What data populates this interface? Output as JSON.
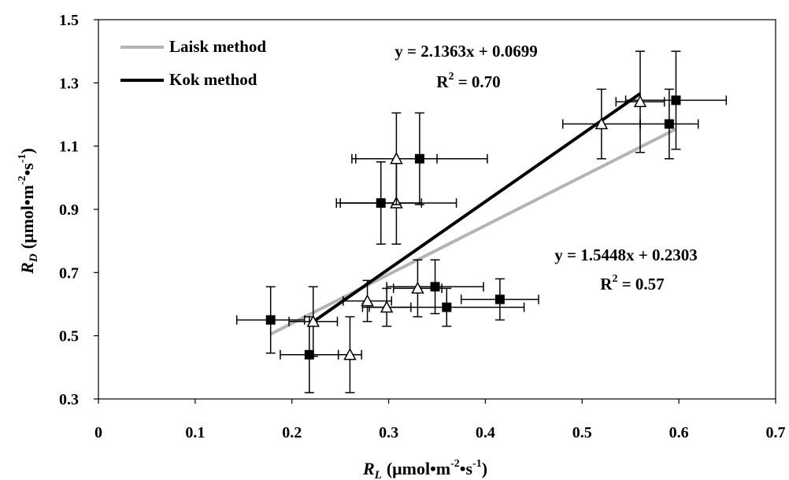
{
  "chart_data": {
    "type": "scatter",
    "x_axis": {
      "label_main": "R",
      "label_sub": "L",
      "label_pre_unit": "(μmol•m",
      "label_exp1": "-2",
      "label_mid": "•s",
      "label_exp2": "-1",
      "label_post": ")",
      "lim": [
        0,
        0.7
      ],
      "ticks": [
        0,
        0.1,
        0.2,
        0.3,
        0.4,
        0.5,
        0.6,
        0.7
      ],
      "tick_labels": [
        "0",
        "0.1",
        "0.2",
        "0.3",
        "0.4",
        "0.5",
        "0.6",
        "0.7"
      ]
    },
    "y_axis": {
      "label_main": "R",
      "label_sub": "D",
      "label_pre_unit": "(μmol•m",
      "label_exp1": "-2",
      "label_mid": "•s",
      "label_exp2": "-1",
      "label_post": ")",
      "lim": [
        0.3,
        1.5
      ],
      "ticks": [
        0.3,
        0.5,
        0.7,
        0.9,
        1.1,
        1.3,
        1.5
      ],
      "tick_labels": [
        "0.3",
        "0.5",
        "0.7",
        "0.9",
        "1.1",
        "1.3",
        "1.5"
      ]
    },
    "grid": false,
    "legend": {
      "placement": "top-left",
      "entries": [
        {
          "label": "Laisk method",
          "color": "#b4b4b4"
        },
        {
          "label": "Kok method",
          "color": "#000000"
        }
      ]
    },
    "series": [
      {
        "marker": "square-filled",
        "points": [
          {
            "x": 0.178,
            "y": 0.55,
            "xerr": 0.035,
            "yerr": 0.105
          },
          {
            "x": 0.218,
            "y": 0.44,
            "xerr": 0.03,
            "yerr": 0.12
          },
          {
            "x": 0.292,
            "y": 0.92,
            "xerr": 0.042,
            "yerr": 0.13
          },
          {
            "x": 0.332,
            "y": 1.06,
            "xerr": 0.07,
            "yerr": 0.145
          },
          {
            "x": 0.348,
            "y": 0.655,
            "xerr": 0.05,
            "yerr": 0.085
          },
          {
            "x": 0.36,
            "y": 0.59,
            "xerr": 0.08,
            "yerr": 0.06
          },
          {
            "x": 0.415,
            "y": 0.615,
            "xerr": 0.04,
            "yerr": 0.065
          },
          {
            "x": 0.59,
            "y": 1.17,
            "xerr": 0.03,
            "yerr": 0.11
          },
          {
            "x": 0.597,
            "y": 1.245,
            "xerr": 0.052,
            "yerr": 0.155
          }
        ]
      },
      {
        "marker": "triangle-open",
        "points": [
          {
            "x": 0.222,
            "y": 0.545,
            "xerr": 0.025,
            "yerr": 0.11
          },
          {
            "x": 0.26,
            "y": 0.44,
            "xerr": 0.012,
            "yerr": 0.12
          },
          {
            "x": 0.278,
            "y": 0.61,
            "xerr": 0.025,
            "yerr": 0.065
          },
          {
            "x": 0.298,
            "y": 0.59,
            "xerr": 0.025,
            "yerr": 0.06
          },
          {
            "x": 0.308,
            "y": 0.92,
            "xerr": 0.062,
            "yerr": 0.13
          },
          {
            "x": 0.308,
            "y": 1.06,
            "xerr": 0.042,
            "yerr": 0.145
          },
          {
            "x": 0.33,
            "y": 0.65,
            "xerr": 0.025,
            "yerr": 0.09
          },
          {
            "x": 0.52,
            "y": 1.17,
            "xerr": 0.04,
            "yerr": 0.11
          },
          {
            "x": 0.56,
            "y": 1.24,
            "xerr": 0.025,
            "yerr": 0.16
          }
        ]
      }
    ],
    "lines": [
      {
        "name": "Laisk method",
        "color": "#b4b4b4",
        "x": [
          0.178,
          0.597
        ],
        "y": [
          0.505,
          1.154
        ]
      },
      {
        "name": "Kok method",
        "color": "#000000",
        "x": [
          0.22,
          0.56
        ],
        "y": [
          0.54,
          1.266
        ]
      }
    ],
    "annotations": [
      {
        "eq": "y = 2.1363x + 0.0699",
        "r2_prefix": "R",
        "r2_exp": "2",
        "r2_value": " = 0.70"
      },
      {
        "eq": "y = 1.5448x + 0.2303",
        "r2_prefix": "R",
        "r2_exp": "2",
        "r2_value": " = 0.57"
      }
    ]
  }
}
